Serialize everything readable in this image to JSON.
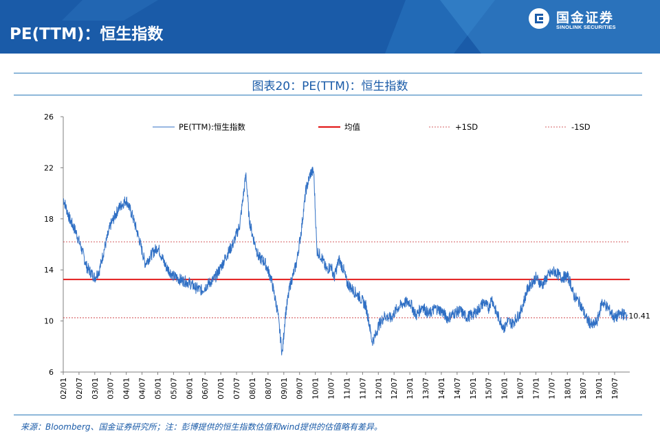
{
  "header": {
    "title": "PE(TTM)：恒生指数"
  },
  "logo": {
    "cn": "国金证券",
    "en": "SINOLINK SECURITIES"
  },
  "figure": {
    "title": "图表20：PE(TTM)：恒生指数"
  },
  "source_note": "来源：Bloomberg、国金证券研究所；注：彭博提供的恒生指数估值和wind提供的估值略有差异。",
  "colors": {
    "header_bg": "#1a5ba8",
    "series": "#2f6fc4",
    "mean": "#e21b1b",
    "sd": "#c8282d",
    "axis": "#7f7f7f"
  },
  "chart_data": {
    "type": "line",
    "title": "图表20：PE(TTM)：恒生指数",
    "xlabel": "",
    "ylabel": "",
    "ylim": [
      6,
      26
    ],
    "yticks": [
      "6",
      "10",
      "14",
      "18",
      "22",
      "26"
    ],
    "xlim": [
      "2002-01",
      "2019-12"
    ],
    "xticks": [
      "02/01",
      "02/07",
      "03/01",
      "03/07",
      "04/01",
      "04/07",
      "05/01",
      "05/07",
      "06/01",
      "06/07",
      "07/01",
      "07/07",
      "08/01",
      "08/07",
      "09/01",
      "09/07",
      "10/01",
      "10/07",
      "11/01",
      "11/07",
      "12/01",
      "12/07",
      "13/01",
      "13/07",
      "14/01",
      "14/07",
      "15/01",
      "15/07",
      "16/01",
      "16/07",
      "17/01",
      "17/07",
      "18/01",
      "18/07",
      "19/01",
      "19/07"
    ],
    "legend": [
      "PE(TTM):恒生指数",
      "均值",
      "+1SD",
      "-1SD"
    ],
    "series": [
      {
        "name": "PE(TTM):恒生指数",
        "x": [
          2002.0,
          2002.2,
          2002.4,
          2002.6,
          2002.75,
          2003.0,
          2003.15,
          2003.3,
          2003.5,
          2003.75,
          2004.0,
          2004.2,
          2004.4,
          2004.6,
          2004.8,
          2005.0,
          2005.25,
          2005.5,
          2005.75,
          2006.0,
          2006.2,
          2006.4,
          2006.6,
          2006.8,
          2007.0,
          2007.2,
          2007.4,
          2007.6,
          2007.8,
          2007.9,
          2008.0,
          2008.2,
          2008.4,
          2008.6,
          2008.8,
          2008.95,
          2009.05,
          2009.2,
          2009.4,
          2009.55,
          2009.7,
          2009.85,
          2009.95,
          2010.05,
          2010.2,
          2010.35,
          2010.5,
          2010.6,
          2010.75,
          2010.9,
          2011.0,
          2011.2,
          2011.4,
          2011.6,
          2011.7,
          2011.8,
          2011.9,
          2012.0,
          2012.2,
          2012.4,
          2012.6,
          2012.8,
          2013.0,
          2013.2,
          2013.4,
          2013.6,
          2013.8,
          2014.0,
          2014.2,
          2014.4,
          2014.6,
          2014.8,
          2015.0,
          2015.15,
          2015.35,
          2015.5,
          2015.6,
          2015.75,
          2016.0,
          2016.1,
          2016.25,
          2016.5,
          2016.75,
          2017.0,
          2017.2,
          2017.4,
          2017.6,
          2017.8,
          2018.0,
          2018.1,
          2018.2,
          2018.4,
          2018.6,
          2018.8,
          2018.95,
          2019.1,
          2019.3,
          2019.5,
          2019.7,
          2019.9
        ],
        "y": [
          19.6,
          18.0,
          17.0,
          15.5,
          14.2,
          13.4,
          14.0,
          15.6,
          17.5,
          18.8,
          19.5,
          18.2,
          16.5,
          14.5,
          15.2,
          15.8,
          14.3,
          13.5,
          13.2,
          13.0,
          12.6,
          12.4,
          12.9,
          13.3,
          14.2,
          15.2,
          16.1,
          17.5,
          21.5,
          18.0,
          16.8,
          15.0,
          14.6,
          13.3,
          10.8,
          7.4,
          10.5,
          12.8,
          14.5,
          17.0,
          20.2,
          21.6,
          21.7,
          15.5,
          15.0,
          14.0,
          14.3,
          13.4,
          14.8,
          14.0,
          13.0,
          12.4,
          11.9,
          11.2,
          10.0,
          8.4,
          8.8,
          9.6,
          10.4,
          10.2,
          11.0,
          11.4,
          11.5,
          10.4,
          11.2,
          10.5,
          11.0,
          10.8,
          10.2,
          10.6,
          10.8,
          10.3,
          10.5,
          10.8,
          11.5,
          11.0,
          11.8,
          10.6,
          9.4,
          10.0,
          9.8,
          10.6,
          12.6,
          13.4,
          12.8,
          13.6,
          13.9,
          13.4,
          13.5,
          13.0,
          12.0,
          11.4,
          10.2,
          9.6,
          10.0,
          11.5,
          11.0,
          10.2,
          10.6,
          10.41
        ]
      }
    ],
    "reference_lines": [
      {
        "name": "均值",
        "value": 13.25
      },
      {
        "name": "+1SD",
        "value": 16.2
      },
      {
        "name": "-1SD",
        "value": 10.25
      }
    ],
    "annotations": [
      {
        "text": "10.41",
        "x": 2019.9,
        "y": 10.41
      }
    ]
  }
}
